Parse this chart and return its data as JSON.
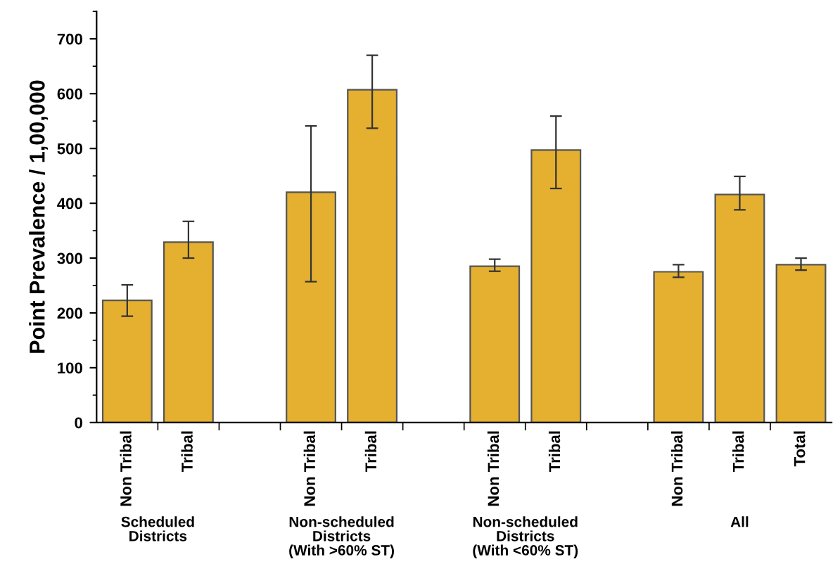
{
  "chart_data": {
    "type": "bar",
    "ylabel": "Point Prevalence / 1,00,000",
    "categories": [
      "Non Tribal",
      "Tribal",
      null,
      "Non Tribal",
      "Tribal",
      null,
      "Non Tribal",
      "Tribal",
      null,
      "Non Tribal",
      "Tribal",
      "Total"
    ],
    "values": [
      223,
      329,
      null,
      420,
      607,
      null,
      285,
      497,
      null,
      275,
      416,
      288
    ],
    "errors": [
      [
        194,
        251
      ],
      [
        300,
        367
      ],
      null,
      [
        257,
        541
      ],
      [
        537,
        670
      ],
      null,
      [
        276,
        298
      ],
      [
        427,
        559
      ],
      null,
      [
        265,
        288
      ],
      [
        388,
        449
      ],
      [
        278,
        300
      ]
    ],
    "color": "#e5b030",
    "ylim": [
      0,
      750
    ],
    "yticks": [
      0,
      100,
      200,
      300,
      400,
      500,
      600,
      700
    ],
    "grid": false,
    "annotations": [
      "Scheduled\nDistricts",
      "Non-scheduled\nDistricts\n(With >60% ST)",
      "Non-scheduled\nDistricts\n(With <60% ST)",
      "All"
    ]
  }
}
